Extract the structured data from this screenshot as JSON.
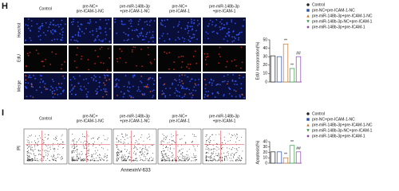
{
  "panel_h": {
    "label": "H",
    "columns": [
      [
        "Control"
      ],
      [
        "pre-NC+",
        "pre-ICAM-1-NC"
      ],
      [
        "pre-miR-148b-3p",
        "+pre-ICAM-1-NC"
      ],
      [
        "pre-NC+",
        "pre-ICAM-1"
      ],
      [
        "pre-miR-148b-3p",
        "+pre-ICAM-1"
      ]
    ],
    "rows": [
      "Hoechst",
      "EdU",
      "Merge"
    ]
  },
  "panel_i": {
    "label": "I",
    "columns": [
      [
        "Control"
      ],
      [
        "pre-NC+",
        "pre-ICAM-1-NC"
      ],
      [
        "pre-miR-148b-3p",
        "+pre-ICAM-1-NC"
      ],
      [
        "pre-NC+",
        "pre-ICAM-1"
      ],
      [
        "pre-miR-148b-3p",
        "+pre-ICAM-1"
      ]
    ],
    "y_label": "PI",
    "x_label": "AnnexinV-633"
  },
  "chart_data": [
    {
      "type": "bar",
      "y_label": "EdU incorporation(%)",
      "categories": [
        "Control",
        "pre-NC+pre-ICAM-1-NC",
        "pre-miR-148b-3p+pre-ICAM-1-NC",
        "pre-miR-148b-3p-NC+pre-ICAM-1",
        "pre-miR-148b-3p+pre-ICAM-1"
      ],
      "values": [
        31,
        30,
        45,
        16,
        30
      ],
      "colors": [
        "#222222",
        "#2b4fa8",
        "#c8742a",
        "#2e9a3c",
        "#8a3fa8"
      ],
      "annotations": [
        null,
        null,
        "**",
        "**",
        "##"
      ],
      "ylim": [
        0,
        50
      ],
      "yticks": [
        0,
        10,
        20,
        30,
        40,
        50
      ]
    },
    {
      "type": "bar",
      "y_label": "Apoptosis(%)",
      "categories": [
        "Control",
        "pre-NC+pre-ICAM-1-NC",
        "pre-miR-148b-3p+pre-ICAM-1-NC",
        "pre-miR-148b-3p-NC+pre-ICAM-1",
        "pre-miR-148b-3p+pre-ICAM-1"
      ],
      "values": [
        21,
        21,
        10,
        33,
        21
      ],
      "colors": [
        "#222222",
        "#2b4fa8",
        "#c8742a",
        "#2e9a3c",
        "#8a3fa8"
      ],
      "annotations": [
        null,
        null,
        "**",
        "**",
        "##"
      ],
      "ylim": [
        0,
        40
      ],
      "yticks": [
        0,
        10,
        20,
        30,
        40
      ]
    }
  ]
}
